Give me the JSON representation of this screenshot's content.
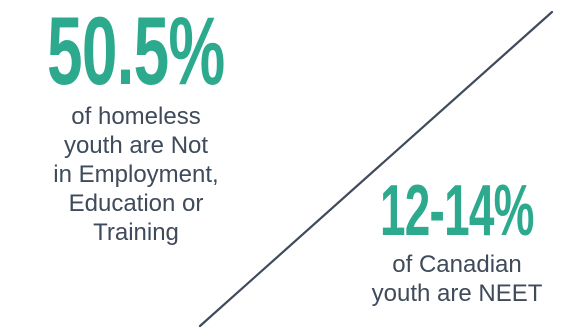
{
  "colors": {
    "accent": "#2daa8e",
    "text": "#3f4a5a",
    "divider": "#3f4a5a",
    "background": "#ffffff"
  },
  "left_stat": {
    "value": "50.5%",
    "description_lines": [
      "of homeless",
      "youth are Not",
      "in Employment,",
      "Education or",
      "Training"
    ]
  },
  "right_stat": {
    "value": "12-14%",
    "description_lines": [
      "of Canadian",
      "youth are NEET"
    ]
  }
}
